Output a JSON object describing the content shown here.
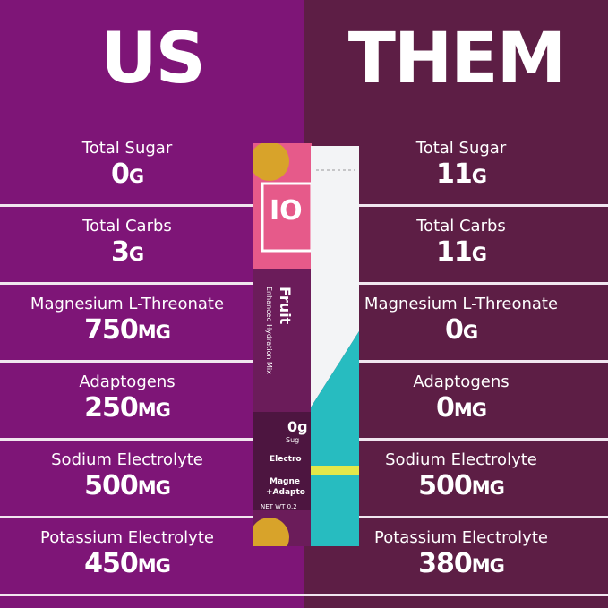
{
  "colors": {
    "us_bg": "#7e1577",
    "them_bg": "#5d1e45",
    "divider": "#f1e6ef"
  },
  "us": {
    "title": "US",
    "rows": [
      {
        "label": "Total Sugar",
        "value": "0",
        "unit": "G"
      },
      {
        "label": "Total Carbs",
        "value": "3",
        "unit": "G"
      },
      {
        "label": "Magnesium L-Threonate",
        "value": "750",
        "unit": "MG"
      },
      {
        "label": "Adaptogens",
        "value": "250",
        "unit": "MG"
      },
      {
        "label": "Sodium Electrolyte",
        "value": "500",
        "unit": "MG"
      },
      {
        "label": "Potassium Electrolyte",
        "value": "450",
        "unit": "MG"
      }
    ]
  },
  "them": {
    "title": "THEM",
    "rows": [
      {
        "label": "Total Sugar",
        "value": "11",
        "unit": "G"
      },
      {
        "label": "Total Carbs",
        "value": "11",
        "unit": "G"
      },
      {
        "label": "Magnesium L-Threonate",
        "value": "0",
        "unit": "G"
      },
      {
        "label": "Adaptogens",
        "value": "0",
        "unit": "MG"
      },
      {
        "label": "Sodium Electrolyte",
        "value": "500",
        "unit": "MG"
      },
      {
        "label": "Potassium Electrolyte",
        "value": "380",
        "unit": "MG"
      }
    ]
  },
  "packet": {
    "logo": "IO MI",
    "flavor": "Fruit",
    "subtitle": "Enhanced Hydration Mix",
    "sugar": "0g",
    "sugar_label": "Sug",
    "electro": "Electro",
    "mag": "Magne",
    "adapt": "+Adapto",
    "net_wt": "NET WT 0.2"
  }
}
